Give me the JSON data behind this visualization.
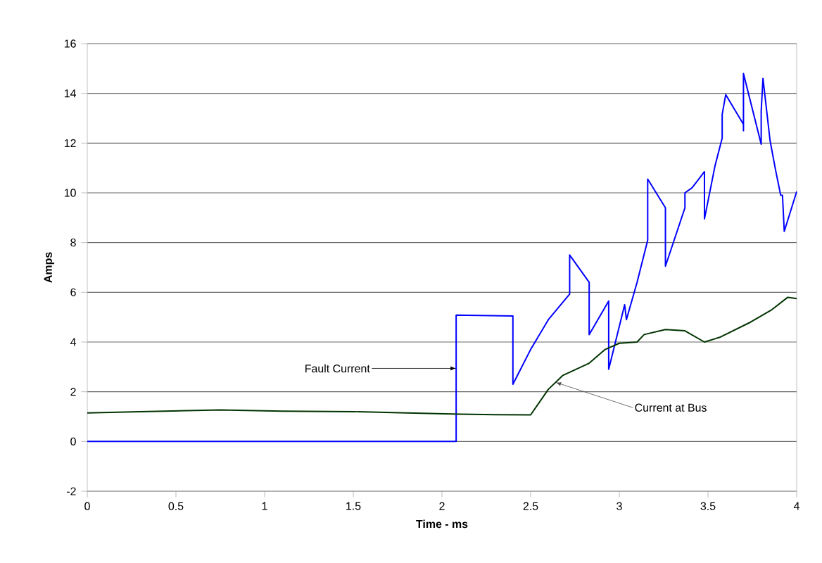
{
  "chart_data": {
    "type": "line",
    "xlabel": "Time - ms",
    "ylabel": "Amps",
    "xlim": [
      0,
      4
    ],
    "ylim": [
      -2,
      16
    ],
    "xticks": [
      0,
      0.5,
      1,
      1.5,
      2,
      2.5,
      3,
      3.5,
      4
    ],
    "yticks": [
      -2,
      0,
      2,
      4,
      6,
      8,
      10,
      12,
      14,
      16
    ],
    "grid": "y",
    "marker": "none",
    "line_style": "solid",
    "series": [
      {
        "color": "#0000ff",
        "x": [
          0,
          2.08,
          2.08,
          2.4,
          2.4,
          2.5,
          2.6,
          2.72,
          2.72,
          2.83,
          2.83,
          2.94,
          2.94,
          3.03,
          3.04,
          3.1,
          3.16,
          3.16,
          3.26,
          3.26,
          3.37,
          3.37,
          3.41,
          3.48,
          3.48,
          3.54,
          3.58,
          3.58,
          3.6,
          3.7,
          3.7,
          3.7,
          3.8,
          3.8,
          3.81,
          3.85,
          3.88,
          3.91,
          3.92,
          3.93,
          4.0
        ],
        "values": [
          0,
          0,
          5.08,
          5.05,
          2.3,
          3.7,
          4.9,
          5.93,
          7.5,
          6.4,
          4.3,
          5.65,
          2.9,
          5.5,
          4.9,
          6.4,
          8.1,
          10.55,
          9.4,
          7.05,
          9.4,
          10.0,
          10.2,
          10.85,
          8.95,
          11.1,
          12.2,
          13.15,
          13.95,
          12.75,
          12.5,
          14.8,
          11.95,
          13.3,
          14.6,
          12.1,
          10.95,
          9.9,
          9.9,
          8.45,
          10.05
        ]
      },
      {
        "color": "#003300",
        "x": [
          0,
          0.3,
          0.75,
          1.1,
          1.5,
          1.8,
          2.1,
          2.3,
          2.5,
          2.6,
          2.68,
          2.83,
          2.92,
          3.0,
          3.1,
          3.14,
          3.26,
          3.37,
          3.48,
          3.57,
          3.74,
          3.86,
          3.95,
          4.0
        ],
        "values": [
          1.15,
          1.2,
          1.27,
          1.22,
          1.2,
          1.15,
          1.1,
          1.08,
          1.07,
          2.1,
          2.65,
          3.15,
          3.7,
          3.95,
          4.0,
          4.3,
          4.5,
          4.45,
          4.0,
          4.2,
          4.8,
          5.3,
          5.8,
          5.75
        ]
      }
    ],
    "annotations": [
      {
        "text": "Fault Current",
        "x": 2.08,
        "y": 2.94
      },
      {
        "text": "Current at Bus",
        "x": 2.64,
        "y": 2.38
      }
    ]
  }
}
